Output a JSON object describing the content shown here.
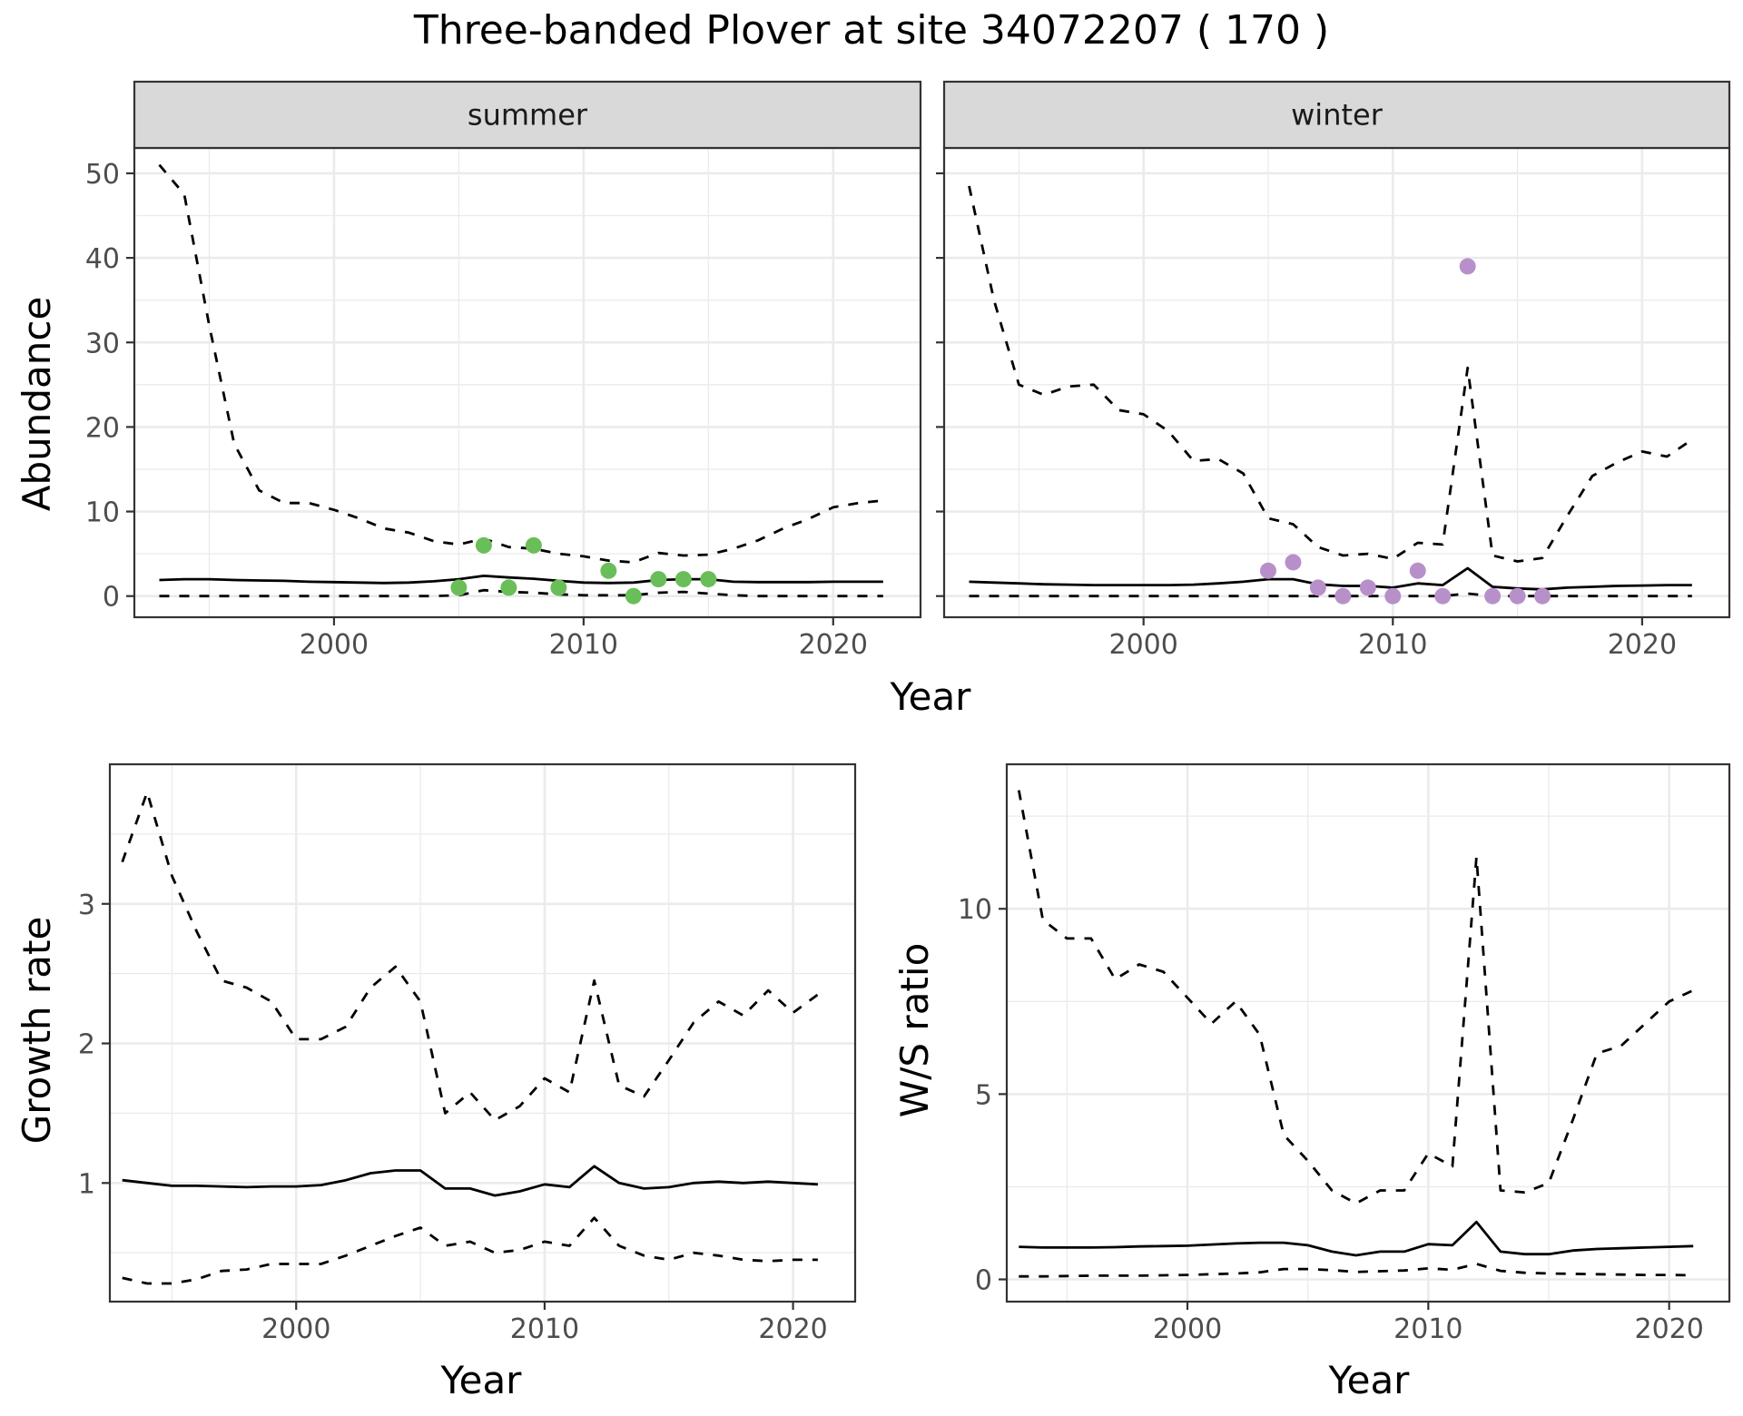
{
  "title": "Three-banded Plover at site 34072207 ( 170 )",
  "colors": {
    "summer_points": "#6ABE59",
    "winter_points": "#B890C9",
    "lines": "#000000",
    "strip_fill": "#D9D9D9",
    "grid": "#EBEBEB",
    "panel_border": "#333333"
  },
  "chart_data": [
    {
      "type": "line",
      "facet": "summer",
      "strip_label": "summer",
      "xlabel": "Year",
      "ylabel": "Abundance",
      "xlim": [
        1992,
        2023.5
      ],
      "ylim": [
        -2.5,
        53
      ],
      "x_ticks": [
        2000,
        2010,
        2020
      ],
      "x_tick_labels": [
        "2000",
        "2010",
        "2020"
      ],
      "y_ticks": [
        0,
        10,
        20,
        30,
        40,
        50
      ],
      "y_tick_labels": [
        "0",
        "10",
        "20",
        "30",
        "40",
        "50"
      ],
      "grid": true,
      "series": [
        {
          "line": "dashed",
          "x": [
            1993,
            1994,
            1995,
            1996,
            1997,
            1998,
            1999,
            2000,
            2001,
            2002,
            2003,
            2004,
            2005,
            2006,
            2007,
            2008,
            2009,
            2010,
            2011,
            2012,
            2013,
            2014,
            2015,
            2016,
            2017,
            2018,
            2019,
            2020,
            2021,
            2022
          ],
          "y": [
            51,
            47.5,
            32,
            18,
            12.5,
            11,
            11,
            10.2,
            9.2,
            8,
            7.5,
            6.5,
            6.1,
            6.8,
            5.8,
            5.6,
            5,
            4.7,
            4.2,
            4,
            5.1,
            4.8,
            4.9,
            5.6,
            6.6,
            8,
            9.1,
            10.5,
            11,
            11.3
          ]
        },
        {
          "line": "solid",
          "x": [
            1993,
            1994,
            1995,
            1996,
            1997,
            1998,
            1999,
            2000,
            2001,
            2002,
            2003,
            2004,
            2005,
            2006,
            2007,
            2008,
            2009,
            2010,
            2011,
            2012,
            2013,
            2014,
            2015,
            2016,
            2017,
            2018,
            2019,
            2020,
            2021,
            2022
          ],
          "y": [
            1.9,
            2,
            2,
            1.9,
            1.85,
            1.8,
            1.7,
            1.65,
            1.6,
            1.55,
            1.6,
            1.75,
            2,
            2.4,
            2.2,
            2.05,
            1.8,
            1.6,
            1.55,
            1.6,
            1.9,
            2,
            2,
            1.7,
            1.65,
            1.65,
            1.65,
            1.7,
            1.7,
            1.7
          ]
        },
        {
          "line": "dashed",
          "x": [
            1993,
            1994,
            1995,
            1996,
            1997,
            1998,
            1999,
            2000,
            2001,
            2002,
            2003,
            2004,
            2005,
            2006,
            2007,
            2008,
            2009,
            2010,
            2011,
            2012,
            2013,
            2014,
            2015,
            2016,
            2017,
            2018,
            2019,
            2020,
            2021,
            2022
          ],
          "y": [
            0,
            0,
            0,
            0,
            0,
            0,
            0,
            0,
            0,
            0,
            0,
            0,
            0.1,
            0.7,
            0.5,
            0.4,
            0.2,
            0.1,
            0.1,
            0.1,
            0.4,
            0.5,
            0.3,
            0.1,
            0,
            0,
            0,
            0,
            0,
            0
          ]
        },
        {
          "type": "points",
          "x": [
            2005,
            2006,
            2007,
            2008,
            2009,
            2011,
            2012,
            2013,
            2014,
            2015
          ],
          "y": [
            1,
            6,
            1,
            6,
            1,
            3,
            0,
            2,
            2,
            2
          ]
        }
      ]
    },
    {
      "type": "line",
      "facet": "winter",
      "strip_label": "winter",
      "xlabel": "Year",
      "ylabel": "Abundance",
      "xlim": [
        1992,
        2023.5
      ],
      "ylim": [
        -2.5,
        53
      ],
      "x_ticks": [
        2000,
        2010,
        2020
      ],
      "x_tick_labels": [
        "2000",
        "2010",
        "2020"
      ],
      "y_ticks": [
        0,
        10,
        20,
        30,
        40,
        50
      ],
      "grid": true,
      "series": [
        {
          "line": "dashed",
          "x": [
            1993,
            1994,
            1995,
            1996,
            1997,
            1998,
            1999,
            2000,
            2001,
            2002,
            2003,
            2004,
            2005,
            2006,
            2007,
            2008,
            2009,
            2010,
            2011,
            2012,
            2013,
            2014,
            2015,
            2016,
            2017,
            2018,
            2019,
            2020,
            2021,
            2022
          ],
          "y": [
            48.5,
            35,
            25,
            23.8,
            24.8,
            25,
            22,
            21.5,
            19.5,
            16,
            16.2,
            14.5,
            9.2,
            8.5,
            5.8,
            4.8,
            5,
            4.4,
            6.3,
            6.1,
            27,
            4.8,
            4.1,
            4.5,
            9.5,
            14.2,
            15.8,
            17.1,
            16.5,
            18.5
          ]
        },
        {
          "line": "solid",
          "x": [
            1993,
            1994,
            1995,
            1996,
            1997,
            1998,
            1999,
            2000,
            2001,
            2002,
            2003,
            2004,
            2005,
            2006,
            2007,
            2008,
            2009,
            2010,
            2011,
            2012,
            2013,
            2014,
            2015,
            2016,
            2017,
            2018,
            2019,
            2020,
            2021,
            2022
          ],
          "y": [
            1.7,
            1.6,
            1.5,
            1.4,
            1.35,
            1.3,
            1.3,
            1.3,
            1.3,
            1.35,
            1.5,
            1.7,
            2,
            2,
            1.4,
            1.2,
            1.2,
            1,
            1.5,
            1.3,
            3.3,
            1.1,
            0.9,
            0.8,
            1,
            1.1,
            1.2,
            1.25,
            1.3,
            1.3
          ]
        },
        {
          "line": "dashed",
          "x": [
            1993,
            1994,
            1995,
            1996,
            1997,
            1998,
            1999,
            2000,
            2001,
            2002,
            2003,
            2004,
            2005,
            2006,
            2007,
            2008,
            2009,
            2010,
            2011,
            2012,
            2013,
            2014,
            2015,
            2016,
            2017,
            2018,
            2019,
            2020,
            2021,
            2022
          ],
          "y": [
            0,
            0,
            0,
            0,
            0,
            0,
            0,
            0,
            0,
            0,
            0,
            0,
            0,
            0,
            0,
            0,
            0,
            0,
            0,
            0,
            0.3,
            0,
            0,
            0,
            0,
            0,
            0,
            0,
            0,
            0
          ]
        },
        {
          "type": "points",
          "x": [
            2005,
            2006,
            2007,
            2008,
            2009,
            2010,
            2011,
            2012,
            2013,
            2014,
            2015,
            2016
          ],
          "y": [
            3,
            4,
            1,
            0,
            1,
            0,
            3,
            0,
            39,
            0,
            0,
            0
          ]
        }
      ]
    },
    {
      "type": "line",
      "xlabel": "Year",
      "ylabel": "Growth rate",
      "xlim": [
        1992.5,
        2022.5
      ],
      "ylim": [
        0.15,
        4.0
      ],
      "x_ticks": [
        2000,
        2010,
        2020
      ],
      "x_tick_labels": [
        "2000",
        "2010",
        "2020"
      ],
      "y_ticks": [
        1,
        2,
        3
      ],
      "y_tick_labels": [
        "1",
        "2",
        "3"
      ],
      "grid": true,
      "series": [
        {
          "line": "dashed",
          "x": [
            1993,
            1994,
            1995,
            1996,
            1997,
            1998,
            1999,
            2000,
            2001,
            2002,
            2003,
            2004,
            2005,
            2006,
            2007,
            2008,
            2009,
            2010,
            2011,
            2012,
            2013,
            2014,
            2015,
            2016,
            2017,
            2018,
            2019,
            2020,
            2021
          ],
          "y": [
            3.3,
            3.8,
            3.2,
            2.8,
            2.45,
            2.4,
            2.3,
            2.03,
            2.03,
            2.12,
            2.4,
            2.55,
            2.3,
            1.5,
            1.65,
            1.45,
            1.55,
            1.75,
            1.65,
            2.45,
            1.7,
            1.62,
            1.88,
            2.15,
            2.3,
            2.2,
            2.38,
            2.22,
            2.35
          ]
        },
        {
          "line": "solid",
          "x": [
            1993,
            1994,
            1995,
            1996,
            1997,
            1998,
            1999,
            2000,
            2001,
            2002,
            2003,
            2004,
            2005,
            2006,
            2007,
            2008,
            2009,
            2010,
            2011,
            2012,
            2013,
            2014,
            2015,
            2016,
            2017,
            2018,
            2019,
            2020,
            2021
          ],
          "y": [
            1.02,
            1.0,
            0.98,
            0.98,
            0.975,
            0.97,
            0.975,
            0.975,
            0.985,
            1.02,
            1.07,
            1.09,
            1.09,
            0.96,
            0.96,
            0.91,
            0.94,
            0.99,
            0.97,
            1.12,
            1.0,
            0.96,
            0.97,
            1.0,
            1.01,
            1.0,
            1.01,
            1.0,
            0.99
          ]
        },
        {
          "line": "dashed",
          "x": [
            1993,
            1994,
            1995,
            1996,
            1997,
            1998,
            1999,
            2000,
            2001,
            2002,
            2003,
            2004,
            2005,
            2006,
            2007,
            2008,
            2009,
            2010,
            2011,
            2012,
            2013,
            2014,
            2015,
            2016,
            2017,
            2018,
            2019,
            2020,
            2021
          ],
          "y": [
            0.32,
            0.28,
            0.28,
            0.31,
            0.37,
            0.38,
            0.42,
            0.42,
            0.42,
            0.48,
            0.55,
            0.62,
            0.68,
            0.55,
            0.58,
            0.5,
            0.52,
            0.58,
            0.55,
            0.75,
            0.55,
            0.48,
            0.45,
            0.5,
            0.48,
            0.45,
            0.44,
            0.45,
            0.45
          ]
        }
      ]
    },
    {
      "type": "line",
      "xlabel": "Year",
      "ylabel": "W/S ratio",
      "xlim": [
        1992.5,
        2022.5
      ],
      "ylim": [
        -0.6,
        13.9
      ],
      "x_ticks": [
        2000,
        2010,
        2020
      ],
      "x_tick_labels": [
        "2000",
        "2010",
        "2020"
      ],
      "y_ticks": [
        0,
        5,
        10
      ],
      "y_tick_labels": [
        "0",
        "5",
        "10"
      ],
      "grid": true,
      "series": [
        {
          "line": "dashed",
          "x": [
            1993,
            1994,
            1995,
            1996,
            1997,
            1998,
            1999,
            2000,
            2001,
            2002,
            2003,
            2004,
            2005,
            2006,
            2007,
            2008,
            2009,
            2010,
            2011,
            2012,
            2013,
            2014,
            2015,
            2016,
            2017,
            2018,
            2019,
            2020,
            2021
          ],
          "y": [
            13.2,
            9.7,
            9.2,
            9.2,
            8.1,
            8.5,
            8.3,
            7.6,
            6.9,
            7.5,
            6.6,
            3.9,
            3.2,
            2.4,
            2.05,
            2.4,
            2.4,
            3.4,
            3.05,
            11.4,
            2.4,
            2.35,
            2.6,
            4.3,
            6.1,
            6.3,
            6.9,
            7.5,
            7.8
          ]
        },
        {
          "line": "solid",
          "x": [
            1993,
            1994,
            1995,
            1996,
            1997,
            1998,
            1999,
            2000,
            2001,
            2002,
            2003,
            2004,
            2005,
            2006,
            2007,
            2008,
            2009,
            2010,
            2011,
            2012,
            2013,
            2014,
            2015,
            2016,
            2017,
            2018,
            2019,
            2020,
            2021
          ],
          "y": [
            0.88,
            0.86,
            0.86,
            0.86,
            0.87,
            0.89,
            0.9,
            0.91,
            0.94,
            0.97,
            0.99,
            0.99,
            0.92,
            0.75,
            0.65,
            0.75,
            0.75,
            0.95,
            0.92,
            1.55,
            0.75,
            0.68,
            0.68,
            0.78,
            0.82,
            0.84,
            0.86,
            0.88,
            0.9
          ]
        },
        {
          "line": "dashed",
          "x": [
            1993,
            1994,
            1995,
            1996,
            1997,
            1998,
            1999,
            2000,
            2001,
            2002,
            2003,
            2004,
            2005,
            2006,
            2007,
            2008,
            2009,
            2010,
            2011,
            2012,
            2013,
            2014,
            2015,
            2016,
            2017,
            2018,
            2019,
            2020,
            2021
          ],
          "y": [
            0.08,
            0.08,
            0.09,
            0.1,
            0.1,
            0.1,
            0.11,
            0.12,
            0.14,
            0.16,
            0.19,
            0.28,
            0.28,
            0.25,
            0.2,
            0.22,
            0.24,
            0.3,
            0.26,
            0.42,
            0.23,
            0.18,
            0.16,
            0.15,
            0.14,
            0.13,
            0.12,
            0.12,
            0.11
          ]
        }
      ]
    }
  ]
}
